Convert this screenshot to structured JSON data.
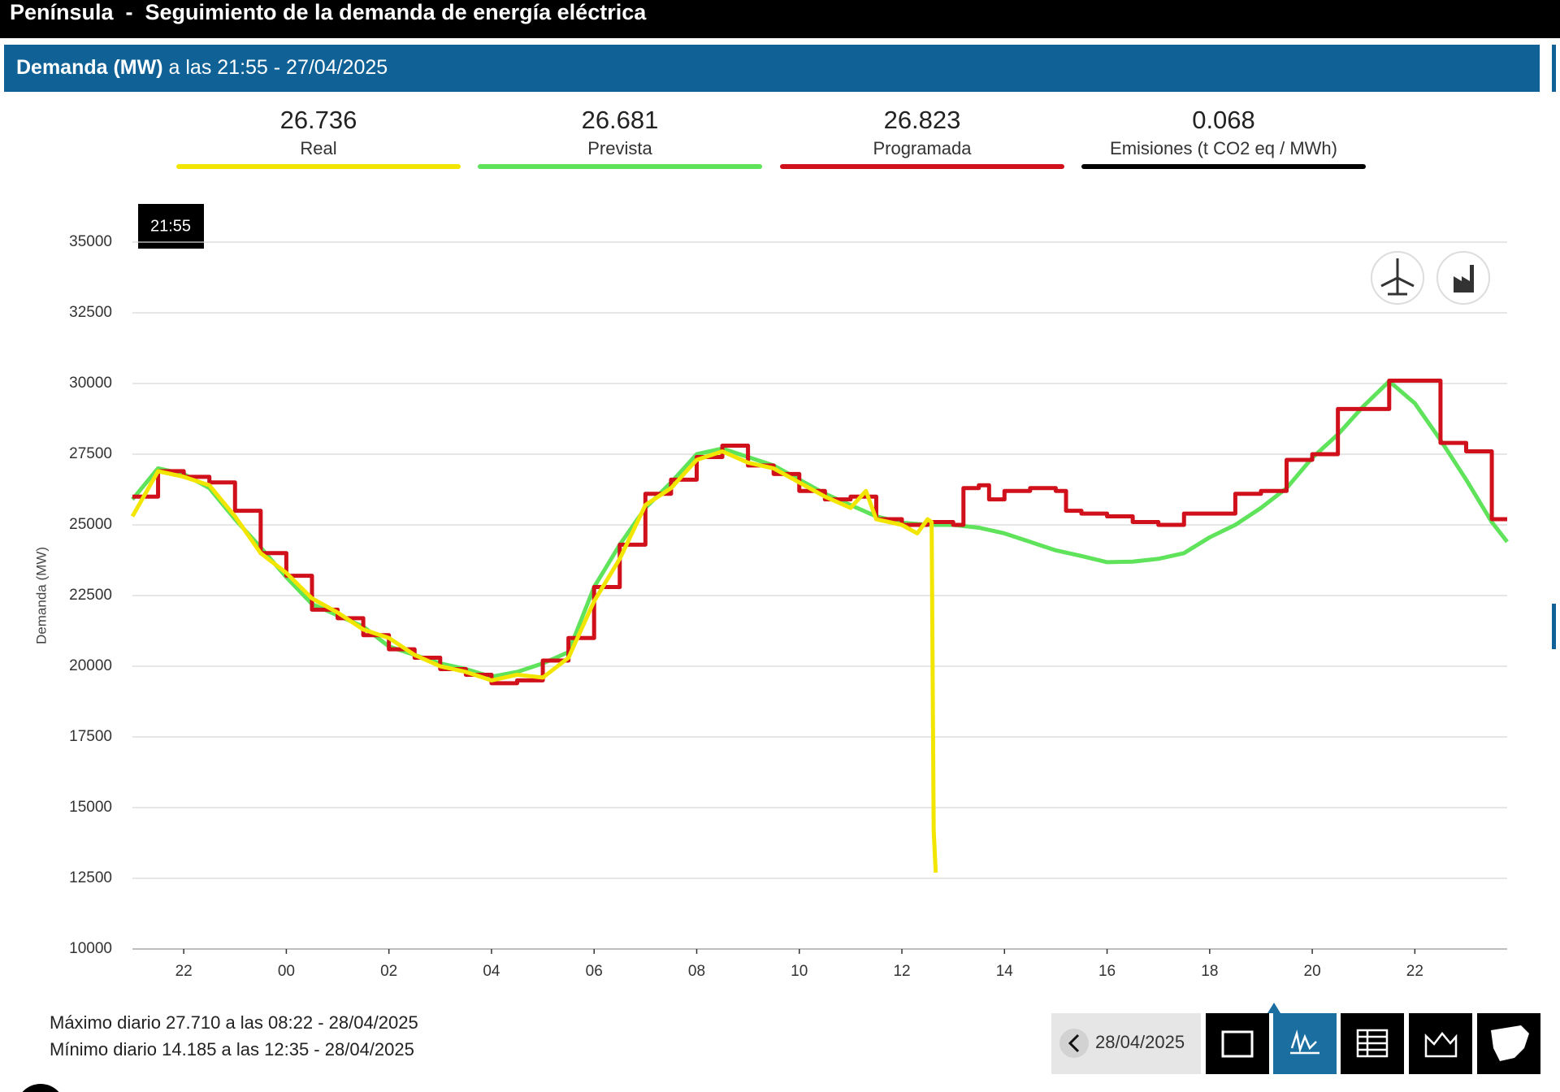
{
  "header": {
    "title": "Península  -  Seguimiento de la demanda de energía eléctrica"
  },
  "subheader": {
    "label": "Demanda (MW)",
    "text": "a las 21:55 - 27/04/2025"
  },
  "chart_data": {
    "type": "line",
    "y_label": "Demanda (MW)",
    "tooltip": "21:55",
    "grid": true,
    "ylim": [
      10000,
      35000
    ],
    "yticks": [
      10000,
      12500,
      15000,
      17500,
      20000,
      22500,
      25000,
      27500,
      30000,
      32500,
      35000
    ],
    "xlim": [
      21,
      47.8
    ],
    "xticks": [
      22,
      {
        "value": 24,
        "label": "00"
      },
      {
        "value": 26,
        "label": "02"
      },
      {
        "value": 28,
        "label": "04"
      },
      {
        "value": 30,
        "label": "06"
      },
      {
        "value": 32,
        "label": "08"
      },
      {
        "value": 34,
        "label": "10"
      },
      {
        "value": 36,
        "label": "12"
      },
      {
        "value": 38,
        "label": "14"
      },
      {
        "value": 40,
        "label": "16"
      },
      {
        "value": 42,
        "label": "18"
      },
      {
        "value": 44,
        "label": "20"
      },
      {
        "value": 46,
        "label": "22"
      }
    ],
    "series": [
      {
        "name": "Real",
        "current": "26.736",
        "color": "#f2e600",
        "step": false,
        "x": [
          21.0,
          21.5,
          22.0,
          22.5,
          23.0,
          23.5,
          24.0,
          24.5,
          25.0,
          25.5,
          26.0,
          26.5,
          27.0,
          27.5,
          28.0,
          28.5,
          29.0,
          29.5,
          30.0,
          30.5,
          31.0,
          31.5,
          32.0,
          32.5,
          33.0,
          33.5,
          34.0,
          34.5,
          35.0,
          35.3,
          35.5,
          36.0,
          36.3,
          36.5,
          36.58,
          36.62,
          36.66
        ],
        "values": [
          25300,
          26900,
          26700,
          26400,
          25300,
          24000,
          23300,
          22400,
          21900,
          21300,
          21000,
          20400,
          20000,
          19800,
          19500,
          19700,
          19600,
          20300,
          22300,
          23800,
          25700,
          26300,
          27300,
          27600,
          27200,
          27000,
          26500,
          26000,
          25600,
          26200,
          25200,
          25000,
          24700,
          25200,
          25100,
          14200,
          12700
        ]
      },
      {
        "name": "Prevista",
        "current": "26.681",
        "color": "#5ee35a",
        "step": false,
        "x": [
          21.0,
          21.5,
          22.0,
          22.5,
          23.0,
          23.5,
          24.0,
          24.5,
          25.0,
          25.5,
          26.0,
          26.5,
          27.0,
          27.5,
          28.0,
          28.5,
          29.0,
          29.5,
          30.0,
          30.5,
          31.0,
          31.5,
          32.0,
          32.5,
          33.0,
          33.5,
          34.0,
          34.5,
          35.0,
          35.5,
          36.0,
          36.5,
          37.0,
          37.5,
          38.0,
          38.5,
          39.0,
          39.5,
          40.0,
          40.5,
          41.0,
          41.5,
          42.0,
          42.5,
          43.0,
          43.5,
          44.0,
          44.5,
          45.0,
          45.5,
          46.0,
          46.5,
          47.0,
          47.5,
          47.8
        ],
        "values": [
          25900,
          27000,
          26800,
          26300,
          25200,
          24200,
          23150,
          22200,
          21800,
          21400,
          20700,
          20400,
          20100,
          19900,
          19630,
          19800,
          20100,
          20500,
          22800,
          24300,
          25600,
          26500,
          27500,
          27700,
          27400,
          27100,
          26600,
          26100,
          25700,
          25300,
          25080,
          25000,
          25000,
          24900,
          24700,
          24400,
          24100,
          23900,
          23680,
          23700,
          23800,
          24000,
          24560,
          25000,
          25600,
          26300,
          27370,
          28200,
          29200,
          30080,
          29300,
          28000,
          26600,
          25100,
          24400
        ]
      },
      {
        "name": "Programada",
        "current": "26.823",
        "color": "#d0101a",
        "step": true,
        "x": [
          21.0,
          21.5,
          22.0,
          22.5,
          23.0,
          23.5,
          24.0,
          24.5,
          25.0,
          25.5,
          26.0,
          26.5,
          27.0,
          27.5,
          28.0,
          28.5,
          29.0,
          29.5,
          30.0,
          30.5,
          31.0,
          31.5,
          32.0,
          32.5,
          33.0,
          33.5,
          34.0,
          34.5,
          35.0,
          35.5,
          36.0,
          36.5,
          37.0,
          37.2,
          37.5,
          37.7,
          38.0,
          38.5,
          39.0,
          39.2,
          39.5,
          40.0,
          40.5,
          41.0,
          41.5,
          42.0,
          42.5,
          43.0,
          43.5,
          44.0,
          44.5,
          45.0,
          45.5,
          46.0,
          46.5,
          47.0,
          47.5,
          47.8
        ],
        "values": [
          26000,
          26900,
          26700,
          26500,
          25500,
          24000,
          23200,
          22000,
          21700,
          21100,
          20600,
          20300,
          19900,
          19700,
          19400,
          19500,
          20200,
          21000,
          22800,
          24300,
          26100,
          26600,
          27400,
          27800,
          27100,
          26800,
          26200,
          25900,
          26000,
          25200,
          25000,
          25100,
          25000,
          26300,
          26400,
          25900,
          26200,
          26300,
          26200,
          25500,
          25400,
          25300,
          25100,
          25000,
          25400,
          25400,
          26100,
          26200,
          27300,
          27500,
          29100,
          29100,
          30100,
          30100,
          27900,
          27600,
          25200,
          25200
        ]
      }
    ]
  },
  "emissions": {
    "value": "0.068",
    "label": "Emisiones (t CO2 eq / MWh)",
    "color": "#000000"
  },
  "footer": {
    "max": "Máximo diario 27.710 a las 08:22 - 28/04/2025",
    "min": "Mínimo diario 14.185 a las 12:35 - 28/04/2025"
  },
  "date_picker": "28/04/2025"
}
